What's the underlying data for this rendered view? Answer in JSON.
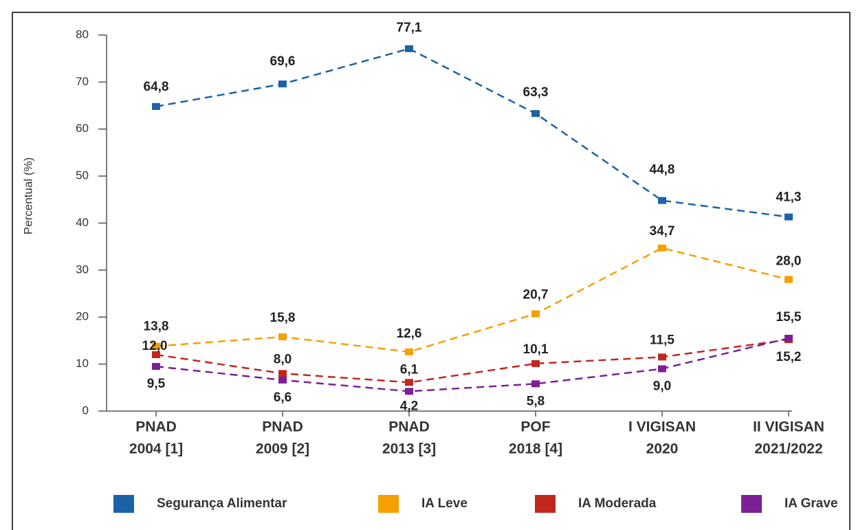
{
  "chart_data": {
    "type": "line",
    "y_label": "Percentual (%)",
    "categories": [
      [
        "PNAD",
        "2004 [1]"
      ],
      [
        "PNAD",
        "2009 [2]"
      ],
      [
        "PNAD",
        "2013 [3]"
      ],
      [
        "POF",
        "2018 [4]"
      ],
      [
        "I VIGISAN",
        "2020"
      ],
      [
        "II VIGISAN",
        "2021/2022"
      ]
    ],
    "ylim": [
      0,
      80
    ],
    "yticks": [
      0,
      10,
      20,
      30,
      40,
      50,
      60,
      70,
      80
    ],
    "series": [
      {
        "name": "Segurança Alimentar",
        "color": "#1b63a6",
        "values": [
          64.8,
          69.6,
          77.1,
          63.3,
          44.8,
          41.3
        ],
        "value_labels": [
          "64,8",
          "69,6",
          "77,1",
          "63,3",
          "44,8",
          "41,3"
        ]
      },
      {
        "name": "IA Leve",
        "color": "#f5a000",
        "values": [
          13.8,
          15.8,
          12.6,
          20.7,
          34.7,
          28.0
        ],
        "value_labels": [
          "13,8",
          "15,8",
          "12,6",
          "20,7",
          "34,7",
          "28,0"
        ]
      },
      {
        "name": "IA Moderada",
        "color": "#c1281d",
        "values": [
          12.0,
          8.0,
          6.1,
          10.1,
          11.5,
          15.2
        ],
        "value_labels": [
          "12,0",
          "8,0",
          "6,1",
          "10,1",
          "11,5",
          "15,2"
        ]
      },
      {
        "name": "IA Grave",
        "color": "#7d1f96",
        "values": [
          9.5,
          6.6,
          4.2,
          5.8,
          9.0,
          15.5
        ],
        "value_labels": [
          "9,5",
          "6,6",
          "4,2",
          "5,8",
          "9,0",
          "15,5"
        ]
      }
    ]
  }
}
